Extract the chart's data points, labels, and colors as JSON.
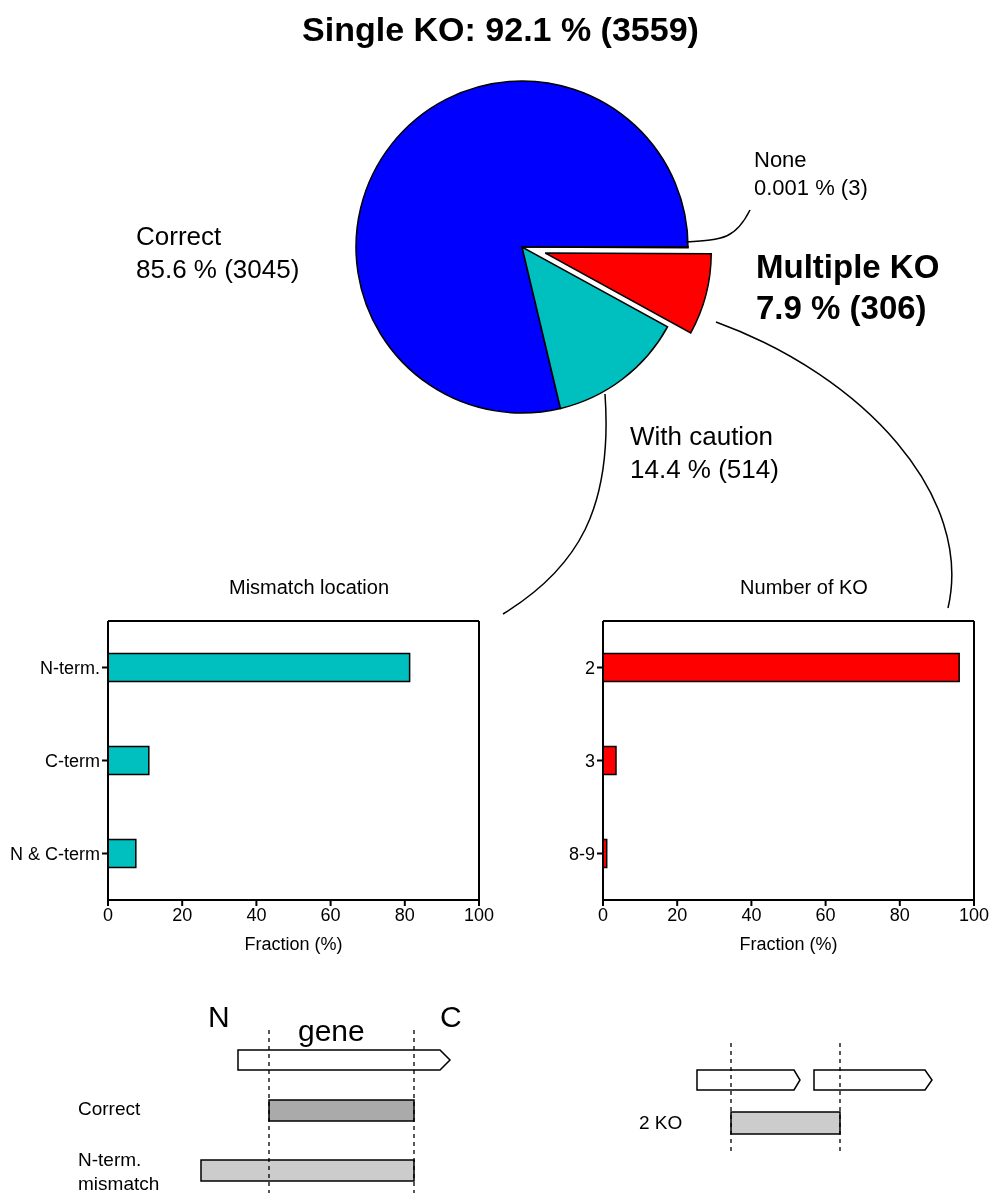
{
  "chart_data": [
    {
      "type": "pie",
      "title": "Single KO:  92.1 % (3559)",
      "categories": [
        "Correct",
        "With caution",
        "Multiple KO",
        "None"
      ],
      "values": [
        3045,
        514,
        306,
        3
      ],
      "colors": [
        "#0000ff",
        "#00bfbf",
        "#ff0000",
        "#ffffff"
      ],
      "value_labels": [
        "85.6 % (3045)",
        "14.4 % (514)",
        "7.9 % (306)",
        "0.001 % (3)"
      ]
    },
    {
      "type": "bar",
      "orientation": "horizontal",
      "title": "Mismatch location",
      "xlabel": "Fraction (%)",
      "categories": [
        "N-term.",
        "C-term",
        "N & C-term"
      ],
      "values": [
        81.3,
        11,
        7.5
      ],
      "color": "#00bfbf",
      "xlim": [
        0,
        100
      ],
      "xticks": [
        0,
        20,
        40,
        60,
        80,
        100
      ],
      "annotations": [
        "N",
        "gene",
        "C",
        "Correct",
        "N-term. mismatch"
      ]
    },
    {
      "type": "bar",
      "orientation": "horizontal",
      "title": "Number of KO",
      "xlabel": "Fraction (%)",
      "categories": [
        "2",
        "3",
        "8-9"
      ],
      "values": [
        96,
        3.5,
        1
      ],
      "color": "#ff0000",
      "xlim": [
        0,
        100
      ],
      "xticks": [
        0,
        20,
        40,
        60,
        80,
        100
      ],
      "annotations": [
        "2 KO"
      ]
    }
  ]
}
